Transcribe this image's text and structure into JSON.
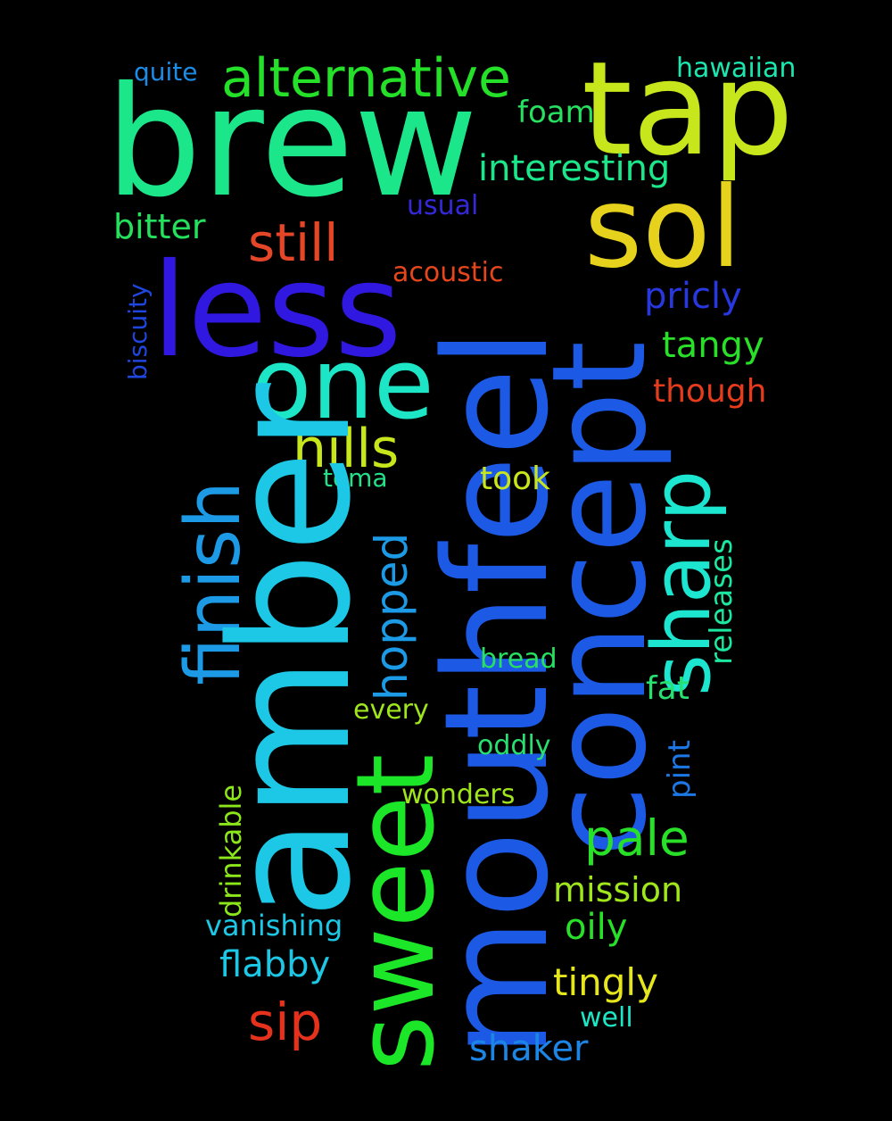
{
  "words": [
    {
      "text": "brew",
      "color": "#1ce68a"
    },
    {
      "text": "tap",
      "color": "#c8e61c"
    },
    {
      "text": "alternative",
      "color": "#24e028"
    },
    {
      "text": "quite",
      "color": "#1c8ce6"
    },
    {
      "text": "hawaiian",
      "color": "#1ce6b0"
    },
    {
      "text": "foam",
      "color": "#28e060"
    },
    {
      "text": "interesting",
      "color": "#1ce68a"
    },
    {
      "text": "usual",
      "color": "#3428d8"
    },
    {
      "text": "sol",
      "color": "#e6d21c"
    },
    {
      "text": "bitter",
      "color": "#24e05c"
    },
    {
      "text": "still",
      "color": "#e64628"
    },
    {
      "text": "acoustic",
      "color": "#e6461c"
    },
    {
      "text": "less",
      "color": "#3018e0"
    },
    {
      "text": "pricly",
      "color": "#2838e0"
    },
    {
      "text": "biscuity",
      "color": "#2046e0"
    },
    {
      "text": "tangy",
      "color": "#28e028"
    },
    {
      "text": "one",
      "color": "#1ce6c6"
    },
    {
      "text": "though",
      "color": "#e63c1c"
    },
    {
      "text": "hills",
      "color": "#c8e61c"
    },
    {
      "text": "mouthfeel",
      "color": "#1c5ae6"
    },
    {
      "text": "concept",
      "color": "#1c5ae6"
    },
    {
      "text": "finish",
      "color": "#1c9ae6"
    },
    {
      "text": "toma",
      "color": "#24e088"
    },
    {
      "text": "took",
      "color": "#c8e61c"
    },
    {
      "text": "sharp",
      "color": "#1ce6d0"
    },
    {
      "text": "releases",
      "color": "#1ce6a0"
    },
    {
      "text": "amber",
      "color": "#1cc8e6"
    },
    {
      "text": "hopped",
      "color": "#1c9ae6"
    },
    {
      "text": "bread",
      "color": "#28e060"
    },
    {
      "text": "fat",
      "color": "#28e070"
    },
    {
      "text": "every",
      "color": "#a0e61c"
    },
    {
      "text": "oddly",
      "color": "#28e070"
    },
    {
      "text": "pint",
      "color": "#1c78e6"
    },
    {
      "text": "sweet",
      "color": "#1ce628"
    },
    {
      "text": "drinkable",
      "color": "#8ce61c"
    },
    {
      "text": "wonders",
      "color": "#a0e61c"
    },
    {
      "text": "pale",
      "color": "#28e028"
    },
    {
      "text": "mission",
      "color": "#a0e61c"
    },
    {
      "text": "vanishing",
      "color": "#1cc8e6"
    },
    {
      "text": "oily",
      "color": "#28e028"
    },
    {
      "text": "flabby",
      "color": "#1cc8e6"
    },
    {
      "text": "tingly",
      "color": "#e6e61c"
    },
    {
      "text": "well",
      "color": "#1ce6c6"
    },
    {
      "text": "sip",
      "color": "#e6321c"
    },
    {
      "text": "shaker",
      "color": "#1c86e6"
    }
  ]
}
